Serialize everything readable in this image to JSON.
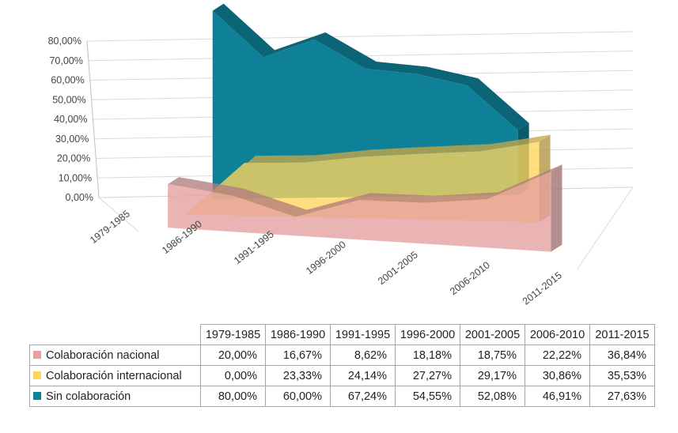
{
  "chart_data": {
    "type": "area",
    "categories": [
      "1979-1985",
      "1986-1990",
      "1991-1995",
      "1996-2000",
      "2001-2005",
      "2006-2010",
      "2011-2015"
    ],
    "series": [
      {
        "name": "Colaboración nacional",
        "color": "#e6a0a0",
        "values": [
          20.0,
          16.67,
          8.62,
          18.18,
          18.75,
          22.22,
          36.84
        ],
        "labels": [
          "20,00%",
          "16,67%",
          "8,62%",
          "18,18%",
          "18,75%",
          "22,22%",
          "36,84%"
        ]
      },
      {
        "name": "Colaboración internacional",
        "color": "#ffd65c",
        "values": [
          0.0,
          23.33,
          24.14,
          27.27,
          29.17,
          30.86,
          35.53
        ],
        "labels": [
          "0,00%",
          "23,33%",
          "24,14%",
          "27,27%",
          "29,17%",
          "30,86%",
          "35,53%"
        ]
      },
      {
        "name": "Sin colaboración",
        "color": "#0e8199",
        "values": [
          80.0,
          60.0,
          67.24,
          54.55,
          52.08,
          46.91,
          27.63
        ],
        "labels": [
          "80,00%",
          "60,00%",
          "67,24%",
          "54,55%",
          "52,08%",
          "46,91%",
          "27,63%"
        ]
      }
    ],
    "y_ticks": [
      "0,00%",
      "10,00%",
      "20,00%",
      "30,00%",
      "40,00%",
      "50,00%",
      "60,00%",
      "70,00%",
      "80,00%"
    ],
    "ylim": [
      0,
      80
    ],
    "grid": true,
    "legend": "data-table-below"
  }
}
